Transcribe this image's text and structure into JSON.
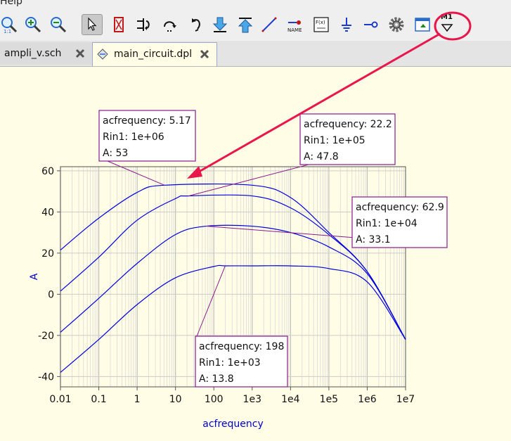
{
  "menu": {
    "help_label": "Help"
  },
  "toolbar": {
    "tools": [
      {
        "name": "zoom-1to1",
        "label": ""
      },
      {
        "name": "zoom-in",
        "label": ""
      },
      {
        "name": "zoom-out",
        "label": ""
      },
      {
        "name": "select",
        "label": ""
      },
      {
        "name": "deactivate",
        "label": ""
      },
      {
        "name": "mirror",
        "label": ""
      },
      {
        "name": "rotate",
        "label": ""
      },
      {
        "name": "enter-subcircuit",
        "label": ""
      },
      {
        "name": "exit-subcircuit",
        "label": ""
      },
      {
        "name": "wire",
        "label": ""
      },
      {
        "name": "wire-label",
        "label": "NAME"
      },
      {
        "name": "equation",
        "label": "F(x)"
      },
      {
        "name": "ground",
        "label": ""
      },
      {
        "name": "port",
        "label": ""
      },
      {
        "name": "simulate",
        "label": ""
      },
      {
        "name": "view-data",
        "label": ""
      },
      {
        "name": "marker",
        "label": "M1"
      }
    ]
  },
  "tabs": [
    {
      "label": "ampli_v.sch",
      "active": false
    },
    {
      "label": "main_circuit.dpl",
      "active": true
    }
  ],
  "colors": {
    "trace": "#0000dd",
    "marker_box": "#8b1a8b",
    "annotation": "#e8174b",
    "axis_label": "#0000cc",
    "background": "#fffde6"
  },
  "chart_data": {
    "type": "line",
    "xscale": "log",
    "xlim": [
      0.01,
      10000000
    ],
    "ylim": [
      -45,
      62
    ],
    "xlabel": "acfrequency",
    "ylabel": "A",
    "xticks": [
      "0.01",
      "0.1",
      "1",
      "10",
      "100",
      "1e3",
      "1e4",
      "1e5",
      "1e6",
      "1e7"
    ],
    "yticks": [
      "60",
      "40",
      "20",
      "0",
      "-20",
      "-40"
    ],
    "grid": true,
    "series": [
      {
        "name": "",
        "x": [
          0.01,
          0.1,
          1,
          5.17,
          1000,
          10000,
          100000,
          1000000,
          10000000
        ],
        "y": [
          21.5,
          37,
          49.5,
          53,
          53,
          47,
          30,
          11,
          -22
        ]
      },
      {
        "name": "",
        "x": [
          0.01,
          0.1,
          1,
          10,
          22.2,
          1000,
          10000,
          100000,
          1000000,
          10000000
        ],
        "y": [
          1.5,
          18,
          36,
          46.5,
          47.8,
          47.8,
          42,
          29,
          11,
          -22
        ]
      },
      {
        "name": "",
        "x": [
          0.01,
          0.1,
          1,
          10,
          62.9,
          1000,
          10000,
          100000,
          1000000,
          10000000
        ],
        "y": [
          -18.5,
          -2,
          15,
          29,
          33.1,
          33.1,
          30,
          23,
          10,
          -22
        ]
      },
      {
        "name": "",
        "x": [
          0.01,
          0.1,
          1,
          10,
          100,
          198,
          1000,
          10000,
          100000,
          1000000,
          10000000
        ],
        "y": [
          -38,
          -22,
          -5,
          8,
          13.5,
          13.8,
          13.8,
          13.8,
          12.5,
          6,
          -22
        ]
      }
    ],
    "markers": [
      {
        "lines": [
          "acfrequency: 5.17",
          "Rin1: 1e+06",
          "A: 53"
        ],
        "x": 5.17,
        "y": 53
      },
      {
        "lines": [
          "acfrequency: 22.2",
          "Rin1: 1e+05",
          "A: 47.8"
        ],
        "x": 22.2,
        "y": 47.8
      },
      {
        "lines": [
          "acfrequency: 62.9",
          "Rin1: 1e+04",
          "A: 33.1"
        ],
        "x": 62.9,
        "y": 33.1
      },
      {
        "lines": [
          "acfrequency: 198",
          "Rin1: 1e+03",
          "A: 13.8"
        ],
        "x": 198,
        "y": 13.8
      }
    ]
  }
}
